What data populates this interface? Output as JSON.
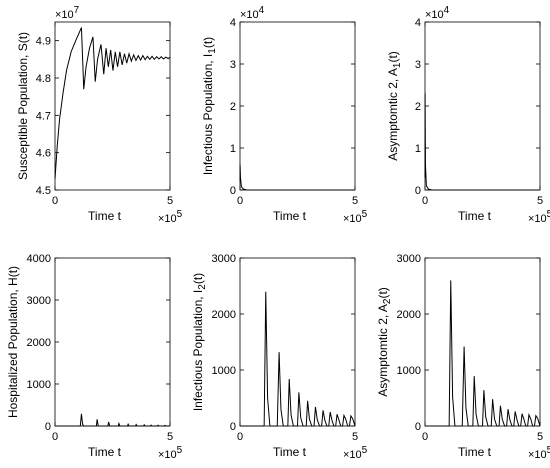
{
  "chart_data": [
    {
      "type": "line",
      "ylabel_main": "Susceptible Population, S(t)",
      "ylabel_sub": "",
      "ylabel_tail": "",
      "xlabel": "Time t",
      "x_multiplier": "×10",
      "x_exponent": "5",
      "y_multiplier": "×10",
      "y_exponent": "7",
      "xlim": [
        0,
        5
      ],
      "ylim": [
        4.5,
        4.95
      ],
      "xticks": [
        "0",
        "5"
      ],
      "yticks": [
        "4.5",
        "4.6",
        "4.7",
        "4.8",
        "4.9"
      ],
      "ytick_values": [
        4.5,
        4.6,
        4.7,
        4.8,
        4.9
      ],
      "series": [
        {
          "x": [
            0,
            0.1,
            0.2,
            0.35,
            0.5,
            0.7,
            0.9,
            1.15,
            1.25,
            1.35,
            1.5,
            1.65,
            1.75,
            1.85,
            2.0,
            2.12,
            2.22,
            2.32,
            2.42,
            2.52,
            2.62,
            2.72,
            2.82,
            2.92,
            3.02,
            3.12,
            3.22,
            3.32,
            3.42,
            3.52,
            3.62,
            3.72,
            3.82,
            3.92,
            4.02,
            4.12,
            4.22,
            4.32,
            4.42,
            4.52,
            4.62,
            4.72,
            4.82,
            4.92,
            5.0
          ],
          "y": [
            4.53,
            4.62,
            4.69,
            4.76,
            4.82,
            4.87,
            4.9,
            4.935,
            4.77,
            4.83,
            4.88,
            4.91,
            4.79,
            4.85,
            4.89,
            4.81,
            4.88,
            4.83,
            4.875,
            4.82,
            4.87,
            4.83,
            4.87,
            4.835,
            4.865,
            4.84,
            4.865,
            4.845,
            4.862,
            4.847,
            4.86,
            4.848,
            4.86,
            4.849,
            4.858,
            4.85,
            4.858,
            4.85,
            4.857,
            4.851,
            4.857,
            4.851,
            4.856,
            4.852,
            4.856
          ]
        }
      ]
    },
    {
      "type": "line",
      "ylabel_main": "Infectious Population, I",
      "ylabel_sub": "1",
      "ylabel_tail": "(t)",
      "xlabel": "Time t",
      "x_multiplier": "×10",
      "x_exponent": "5",
      "y_multiplier": "×10",
      "y_exponent": "4",
      "xlim": [
        0,
        5
      ],
      "ylim": [
        0,
        4
      ],
      "xticks": [
        "0",
        "5"
      ],
      "yticks": [
        "0",
        "1",
        "2",
        "3",
        "4"
      ],
      "ytick_values": [
        0,
        1,
        2,
        3,
        4
      ],
      "series": [
        {
          "x": [
            0,
            0.004,
            0.02,
            0.06,
            0.15,
            0.3,
            5.0
          ],
          "y": [
            0.2,
            0.6,
            0.3,
            0.08,
            0.02,
            0.0,
            0.0
          ]
        }
      ]
    },
    {
      "type": "line",
      "ylabel_main": "Asymptomtic 2, A",
      "ylabel_sub": "1",
      "ylabel_tail": "(t)",
      "xlabel": "Time t",
      "x_multiplier": "×10",
      "x_exponent": "5",
      "y_multiplier": "×10",
      "y_exponent": "4",
      "xlim": [
        0,
        5
      ],
      "ylim": [
        0,
        4
      ],
      "xticks": [
        "0",
        "5"
      ],
      "yticks": [
        "0",
        "1",
        "2",
        "3",
        "4"
      ],
      "ytick_values": [
        0,
        1,
        2,
        3,
        4
      ],
      "series": [
        {
          "x": [
            0,
            0.004,
            0.02,
            0.06,
            0.15,
            0.3,
            5.0
          ],
          "y": [
            0.3,
            2.3,
            0.6,
            0.1,
            0.02,
            0.0,
            0.0
          ]
        }
      ]
    },
    {
      "type": "line",
      "ylabel_main": "Hospitalized Population, H(t)",
      "ylabel_sub": "",
      "ylabel_tail": "",
      "xlabel": "Time t",
      "x_multiplier": "×10",
      "x_exponent": "5",
      "y_multiplier": "",
      "y_exponent": "",
      "xlim": [
        0,
        5
      ],
      "ylim": [
        0,
        4000
      ],
      "xticks": [
        "0",
        "5"
      ],
      "yticks": [
        "0",
        "1000",
        "2000",
        "3000",
        "4000"
      ],
      "ytick_values": [
        0,
        1000,
        2000,
        3000,
        4000
      ],
      "series": [
        {
          "x": [
            0,
            0.05,
            1.1,
            1.15,
            1.2,
            1.25,
            1.8,
            1.83,
            1.88,
            2.3,
            2.33,
            2.38,
            2.75,
            2.78,
            2.82,
            3.15,
            3.18,
            3.22,
            3.5,
            3.53,
            3.57,
            3.85,
            3.88,
            3.92,
            4.15,
            4.18,
            4.22,
            4.45,
            4.48,
            4.52,
            4.75,
            4.78,
            4.82,
            5.0
          ],
          "y": [
            0,
            0,
            0,
            290,
            40,
            0,
            0,
            160,
            0,
            0,
            95,
            0,
            0,
            60,
            0,
            0,
            45,
            0,
            0,
            35,
            0,
            0,
            28,
            0,
            0,
            22,
            0,
            0,
            18,
            0,
            0,
            15,
            0,
            0
          ]
        }
      ]
    },
    {
      "type": "line",
      "ylabel_main": "Infectious Population, I",
      "ylabel_sub": "2",
      "ylabel_tail": "(t)",
      "xlabel": "Time t",
      "x_multiplier": "×10",
      "x_exponent": "5",
      "y_multiplier": "",
      "y_exponent": "",
      "xlim": [
        0,
        5
      ],
      "ylim": [
        0,
        3000
      ],
      "xticks": [
        "0",
        "5"
      ],
      "yticks": [
        "0",
        "1000",
        "2000",
        "3000"
      ],
      "ytick_values": [
        0,
        1000,
        2000,
        3000
      ],
      "series": [
        {
          "x": [
            0,
            1.05,
            1.12,
            1.2,
            1.3,
            1.62,
            1.7,
            1.78,
            1.88,
            2.08,
            2.14,
            2.22,
            2.32,
            2.5,
            2.56,
            2.64,
            2.74,
            2.88,
            2.94,
            3.02,
            3.12,
            3.22,
            3.28,
            3.36,
            3.46,
            3.55,
            3.61,
            3.69,
            3.78,
            3.86,
            3.92,
            4.0,
            4.08,
            4.16,
            4.22,
            4.3,
            4.38,
            4.46,
            4.52,
            4.6,
            4.68,
            4.76,
            4.82,
            4.9,
            5.0
          ],
          "y": [
            0,
            0,
            2400,
            500,
            0,
            0,
            1320,
            300,
            0,
            0,
            840,
            200,
            0,
            0,
            600,
            150,
            0,
            0,
            450,
            120,
            0,
            0,
            340,
            110,
            0,
            0,
            280,
            100,
            0,
            0,
            250,
            100,
            0,
            0,
            210,
            110,
            0,
            0,
            190,
            120,
            0,
            0,
            180,
            130,
            0
          ]
        }
      ]
    },
    {
      "type": "line",
      "ylabel_main": "Asymptomtic 2, A",
      "ylabel_sub": "2",
      "ylabel_tail": "(t)",
      "xlabel": "Time t",
      "x_multiplier": "×10",
      "x_exponent": "5",
      "y_multiplier": "",
      "y_exponent": "",
      "xlim": [
        0,
        5
      ],
      "ylim": [
        0,
        3000
      ],
      "xticks": [
        "0",
        "5"
      ],
      "yticks": [
        "0",
        "1000",
        "2000",
        "3000"
      ],
      "ytick_values": [
        0,
        1000,
        2000,
        3000
      ],
      "series": [
        {
          "x": [
            0,
            1.05,
            1.12,
            1.2,
            1.3,
            1.62,
            1.7,
            1.78,
            1.88,
            2.08,
            2.14,
            2.22,
            2.32,
            2.5,
            2.56,
            2.64,
            2.74,
            2.88,
            2.94,
            3.02,
            3.12,
            3.22,
            3.28,
            3.36,
            3.46,
            3.55,
            3.61,
            3.69,
            3.78,
            3.86,
            3.92,
            4.0,
            4.08,
            4.16,
            4.22,
            4.3,
            4.38,
            4.46,
            4.52,
            4.6,
            4.68,
            4.76,
            4.82,
            4.9,
            5.0
          ],
          "y": [
            0,
            0,
            2600,
            520,
            0,
            0,
            1420,
            320,
            0,
            0,
            890,
            210,
            0,
            0,
            640,
            160,
            0,
            0,
            480,
            130,
            0,
            0,
            360,
            120,
            0,
            0,
            300,
            110,
            0,
            0,
            260,
            110,
            0,
            0,
            220,
            120,
            0,
            0,
            200,
            125,
            0,
            0,
            185,
            135,
            0
          ]
        }
      ]
    }
  ]
}
